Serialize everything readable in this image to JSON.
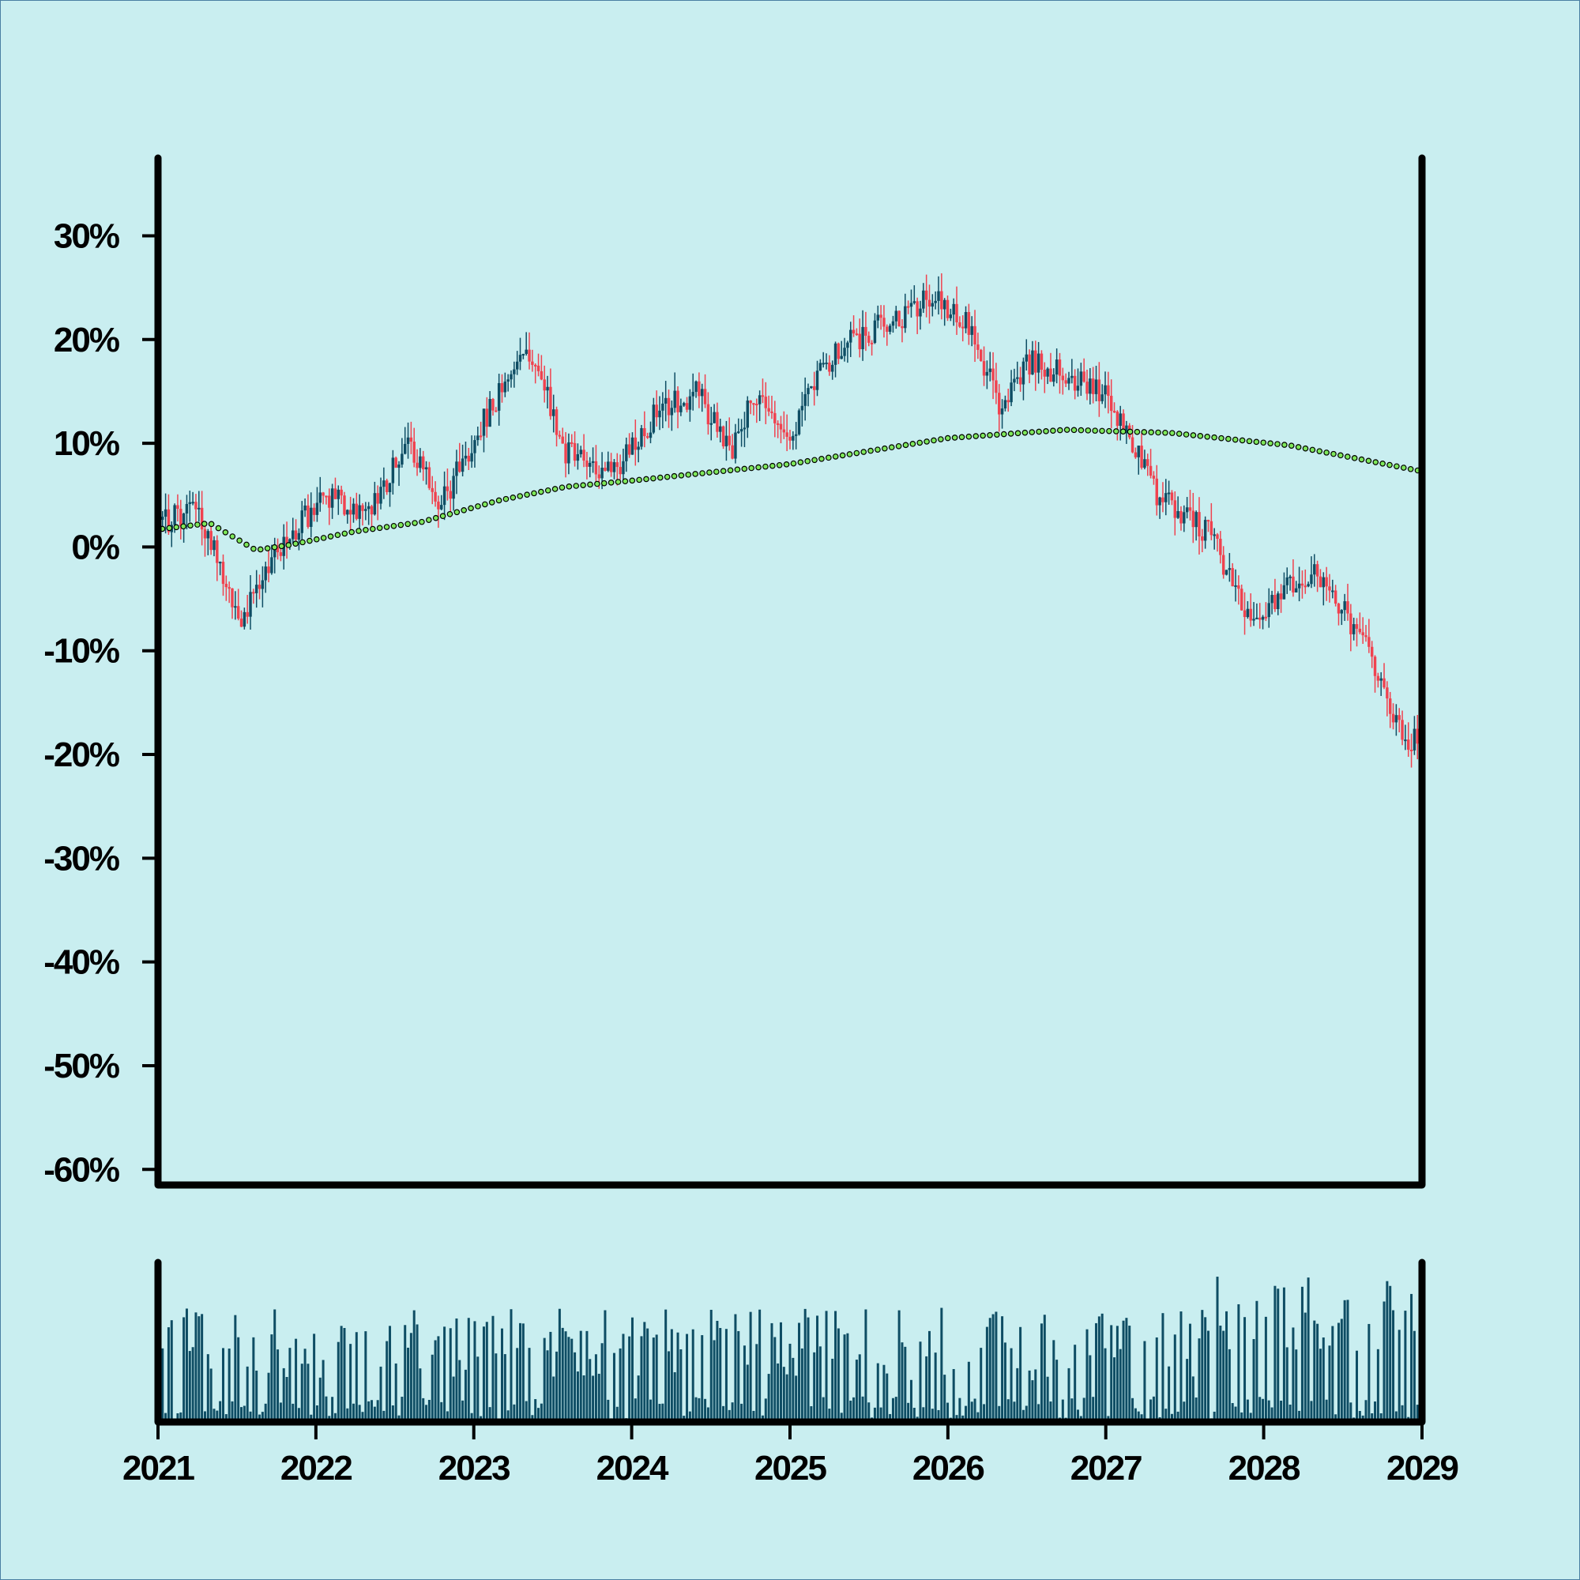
{
  "chart_data": {
    "type": "candlestick",
    "title": "",
    "xlabel": "",
    "ylabel": "",
    "x_ticks": [
      "2021",
      "2022",
      "2023",
      "2024",
      "2025",
      "2026",
      "2027",
      "2028",
      "2029"
    ],
    "x_range": [
      "2021-01-01",
      "2029-01-01"
    ],
    "y_ticks": [
      "30%",
      "20%",
      "10%",
      "0%",
      "-10%",
      "-20%",
      "-30%",
      "-40%",
      "-50%",
      "-60%"
    ],
    "ylim": [
      -61.5,
      37.5
    ],
    "y_unit": "%",
    "grid": false,
    "legend": "none",
    "colors": {
      "up": "#0e4d64",
      "down": "#f0424f",
      "trend": "#7ee85a",
      "volume": "#0e4d64",
      "background": "#c9eef0"
    },
    "price_path": [
      {
        "date": "2021-01-01",
        "value": 2
      },
      {
        "date": "2021-04-01",
        "value": 4
      },
      {
        "date": "2021-07-15",
        "value": -7
      },
      {
        "date": "2021-10-01",
        "value": -1
      },
      {
        "date": "2022-01-15",
        "value": 5
      },
      {
        "date": "2022-05-01",
        "value": 3
      },
      {
        "date": "2022-08-01",
        "value": 10
      },
      {
        "date": "2022-10-15",
        "value": 4
      },
      {
        "date": "2023-03-01",
        "value": 15
      },
      {
        "date": "2023-05-15",
        "value": 19
      },
      {
        "date": "2023-08-01",
        "value": 9
      },
      {
        "date": "2023-11-15",
        "value": 7
      },
      {
        "date": "2024-03-01",
        "value": 13
      },
      {
        "date": "2024-06-01",
        "value": 15
      },
      {
        "date": "2024-08-15",
        "value": 9
      },
      {
        "date": "2024-10-15",
        "value": 15
      },
      {
        "date": "2025-01-01",
        "value": 11
      },
      {
        "date": "2025-04-01",
        "value": 18
      },
      {
        "date": "2025-06-01",
        "value": 20
      },
      {
        "date": "2025-12-01",
        "value": 24
      },
      {
        "date": "2026-03-01",
        "value": 21
      },
      {
        "date": "2026-05-01",
        "value": 13
      },
      {
        "date": "2026-07-01",
        "value": 18
      },
      {
        "date": "2027-01-01",
        "value": 15
      },
      {
        "date": "2027-05-01",
        "value": 5
      },
      {
        "date": "2027-09-01",
        "value": 1
      },
      {
        "date": "2027-12-01",
        "value": -7
      },
      {
        "date": "2028-05-01",
        "value": -2
      },
      {
        "date": "2028-08-15",
        "value": -9
      },
      {
        "date": "2028-11-15",
        "value": -18
      },
      {
        "date": "2029-01-01",
        "value": -19
      }
    ],
    "series": [
      {
        "type": "line-dotted",
        "points": [
          {
            "date": "2021-01-01",
            "value": 1.7
          },
          {
            "date": "2021-05-01",
            "value": 2.3
          },
          {
            "date": "2021-08-15",
            "value": -0.3
          },
          {
            "date": "2021-11-01",
            "value": 0.2
          },
          {
            "date": "2022-04-01",
            "value": 1.5
          },
          {
            "date": "2022-09-01",
            "value": 2.4
          },
          {
            "date": "2023-03-01",
            "value": 4.5
          },
          {
            "date": "2023-08-01",
            "value": 5.8
          },
          {
            "date": "2024-01-01",
            "value": 6.4
          },
          {
            "date": "2025-01-01",
            "value": 8.0
          },
          {
            "date": "2026-01-01",
            "value": 10.5
          },
          {
            "date": "2026-10-01",
            "value": 11.3
          },
          {
            "date": "2027-06-01",
            "value": 11.0
          },
          {
            "date": "2028-03-01",
            "value": 9.8
          },
          {
            "date": "2029-01-01",
            "value": 7.3
          }
        ]
      }
    ],
    "volume": {
      "shown": true
    }
  }
}
